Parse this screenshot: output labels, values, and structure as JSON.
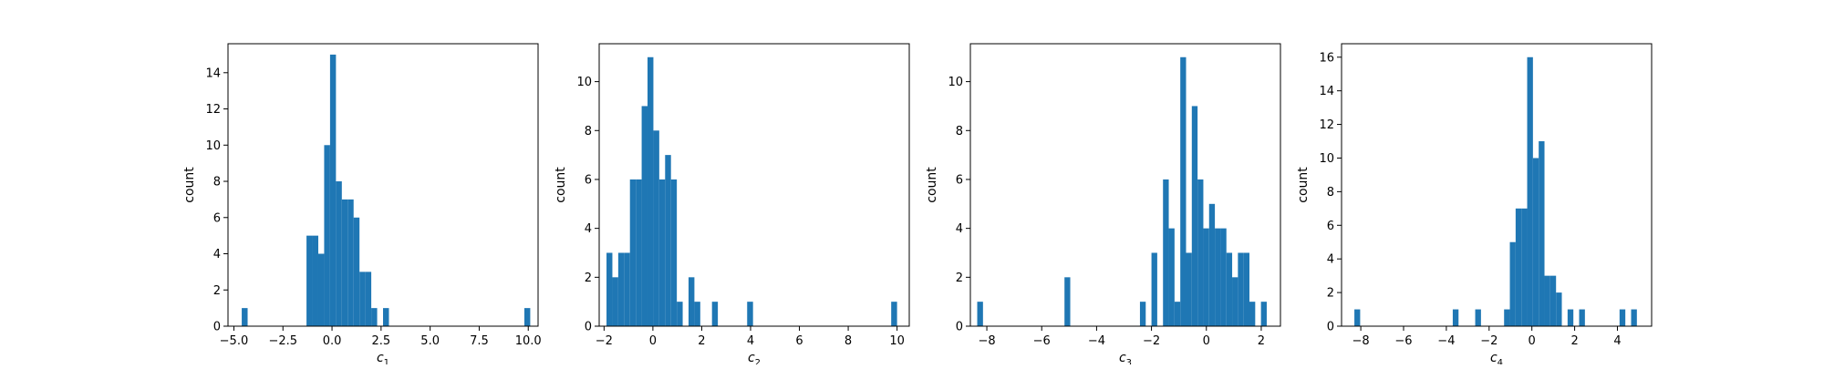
{
  "figure": {
    "bar_color": "#1f77b4",
    "axes_color": "#000000",
    "background": "#ffffff"
  },
  "chart_data": [
    {
      "type": "bar",
      "subtype": "histogram",
      "xlabel": "c",
      "xlabel_subscript": "1",
      "ylabel": "count",
      "xlim": [
        -5.3,
        10.5
      ],
      "ylim": [
        0,
        15.6
      ],
      "xticks": [
        -5.0,
        -2.5,
        0.0,
        2.5,
        5.0,
        7.5,
        10.0
      ],
      "xtick_labels": [
        "−5.0",
        "−2.5",
        "0.0",
        "2.5",
        "5.0",
        "7.5",
        "10.0"
      ],
      "yticks": [
        0,
        2,
        4,
        6,
        8,
        10,
        12,
        14
      ],
      "ytick_labels": [
        "0",
        "2",
        "4",
        "6",
        "8",
        "10",
        "12",
        "14"
      ],
      "grid": false,
      "bins": [
        {
          "x0": -4.6,
          "x1": -4.3,
          "count": 1
        },
        {
          "x0": -1.3,
          "x1": -1.0,
          "count": 5
        },
        {
          "x0": -1.0,
          "x1": -0.7,
          "count": 5
        },
        {
          "x0": -0.7,
          "x1": -0.4,
          "count": 4
        },
        {
          "x0": -0.4,
          "x1": -0.1,
          "count": 10
        },
        {
          "x0": -0.1,
          "x1": 0.2,
          "count": 15
        },
        {
          "x0": 0.2,
          "x1": 0.5,
          "count": 8
        },
        {
          "x0": 0.5,
          "x1": 0.8,
          "count": 7
        },
        {
          "x0": 0.8,
          "x1": 1.1,
          "count": 7
        },
        {
          "x0": 1.1,
          "x1": 1.4,
          "count": 6
        },
        {
          "x0": 1.4,
          "x1": 1.7,
          "count": 3
        },
        {
          "x0": 1.7,
          "x1": 2.0,
          "count": 3
        },
        {
          "x0": 2.0,
          "x1": 2.3,
          "count": 1
        },
        {
          "x0": 2.6,
          "x1": 2.9,
          "count": 1
        },
        {
          "x0": 9.8,
          "x1": 10.1,
          "count": 1
        }
      ]
    },
    {
      "type": "bar",
      "subtype": "histogram",
      "xlabel": "c",
      "xlabel_subscript": "2",
      "ylabel": "count",
      "xlim": [
        -2.2,
        10.5
      ],
      "ylim": [
        0,
        11.55
      ],
      "xticks": [
        -2,
        0,
        2,
        4,
        6,
        8,
        10
      ],
      "xtick_labels": [
        "−2",
        "0",
        "2",
        "4",
        "6",
        "8",
        "10"
      ],
      "yticks": [
        0,
        2,
        4,
        6,
        8,
        10
      ],
      "ytick_labels": [
        "0",
        "2",
        "4",
        "6",
        "8",
        "10"
      ],
      "grid": false,
      "bins": [
        {
          "x0": -1.9,
          "x1": -1.66,
          "count": 3
        },
        {
          "x0": -1.66,
          "x1": -1.42,
          "count": 2
        },
        {
          "x0": -1.42,
          "x1": -1.18,
          "count": 3
        },
        {
          "x0": -1.18,
          "x1": -0.94,
          "count": 3
        },
        {
          "x0": -0.94,
          "x1": -0.7,
          "count": 6
        },
        {
          "x0": -0.7,
          "x1": -0.46,
          "count": 6
        },
        {
          "x0": -0.46,
          "x1": -0.22,
          "count": 9
        },
        {
          "x0": -0.22,
          "x1": 0.02,
          "count": 11
        },
        {
          "x0": 0.02,
          "x1": 0.26,
          "count": 8
        },
        {
          "x0": 0.26,
          "x1": 0.5,
          "count": 6
        },
        {
          "x0": 0.5,
          "x1": 0.74,
          "count": 7
        },
        {
          "x0": 0.74,
          "x1": 0.98,
          "count": 6
        },
        {
          "x0": 0.98,
          "x1": 1.22,
          "count": 1
        },
        {
          "x0": 1.46,
          "x1": 1.7,
          "count": 2
        },
        {
          "x0": 1.7,
          "x1": 1.94,
          "count": 1
        },
        {
          "x0": 2.42,
          "x1": 2.66,
          "count": 1
        },
        {
          "x0": 3.86,
          "x1": 4.1,
          "count": 1
        },
        {
          "x0": 9.76,
          "x1": 10.0,
          "count": 1
        }
      ]
    },
    {
      "type": "bar",
      "subtype": "histogram",
      "xlabel": "c",
      "xlabel_subscript": "3",
      "ylabel": "count",
      "xlim": [
        -8.6,
        2.7
      ],
      "ylim": [
        0,
        11.55
      ],
      "xticks": [
        -8,
        -6,
        -4,
        -2,
        0,
        2
      ],
      "xtick_labels": [
        "−8",
        "−6",
        "−4",
        "−2",
        "0",
        "2"
      ],
      "yticks": [
        0,
        2,
        4,
        6,
        8,
        10
      ],
      "ytick_labels": [
        "0",
        "2",
        "4",
        "6",
        "8",
        "10"
      ],
      "grid": false,
      "bins": [
        {
          "x0": -8.35,
          "x1": -8.14,
          "count": 1
        },
        {
          "x0": -5.17,
          "x1": -4.96,
          "count": 2
        },
        {
          "x0": -2.42,
          "x1": -2.21,
          "count": 1
        },
        {
          "x0": -2.0,
          "x1": -1.79,
          "count": 3
        },
        {
          "x0": -1.58,
          "x1": -1.37,
          "count": 6
        },
        {
          "x0": -1.37,
          "x1": -1.16,
          "count": 4
        },
        {
          "x0": -1.16,
          "x1": -0.95,
          "count": 1
        },
        {
          "x0": -0.95,
          "x1": -0.74,
          "count": 11
        },
        {
          "x0": -0.74,
          "x1": -0.53,
          "count": 3
        },
        {
          "x0": -0.53,
          "x1": -0.32,
          "count": 9
        },
        {
          "x0": -0.32,
          "x1": -0.11,
          "count": 6
        },
        {
          "x0": -0.11,
          "x1": 0.1,
          "count": 4
        },
        {
          "x0": 0.1,
          "x1": 0.31,
          "count": 5
        },
        {
          "x0": 0.31,
          "x1": 0.52,
          "count": 4
        },
        {
          "x0": 0.52,
          "x1": 0.73,
          "count": 4
        },
        {
          "x0": 0.73,
          "x1": 0.94,
          "count": 3
        },
        {
          "x0": 0.94,
          "x1": 1.15,
          "count": 2
        },
        {
          "x0": 1.15,
          "x1": 1.36,
          "count": 3
        },
        {
          "x0": 1.36,
          "x1": 1.57,
          "count": 3
        },
        {
          "x0": 1.57,
          "x1": 1.78,
          "count": 1
        },
        {
          "x0": 1.99,
          "x1": 2.2,
          "count": 1
        }
      ]
    },
    {
      "type": "bar",
      "subtype": "histogram",
      "xlabel": "c",
      "xlabel_subscript": "4",
      "ylabel": "count",
      "xlim": [
        -8.9,
        5.6
      ],
      "ylim": [
        0,
        16.8
      ],
      "xticks": [
        -8,
        -6,
        -4,
        -2,
        0,
        2,
        4
      ],
      "xtick_labels": [
        "−8",
        "−6",
        "−4",
        "−2",
        "0",
        "2",
        "4"
      ],
      "yticks": [
        0,
        2,
        4,
        6,
        8,
        10,
        12,
        14,
        16
      ],
      "ytick_labels": [
        "0",
        "2",
        "4",
        "6",
        "8",
        "10",
        "12",
        "14",
        "16"
      ],
      "grid": false,
      "bins": [
        {
          "x0": -8.3,
          "x1": -8.03,
          "count": 1
        },
        {
          "x0": -3.7,
          "x1": -3.43,
          "count": 1
        },
        {
          "x0": -2.65,
          "x1": -2.38,
          "count": 1
        },
        {
          "x0": -1.3,
          "x1": -1.03,
          "count": 1
        },
        {
          "x0": -1.03,
          "x1": -0.76,
          "count": 5
        },
        {
          "x0": -0.76,
          "x1": -0.49,
          "count": 7
        },
        {
          "x0": -0.49,
          "x1": -0.22,
          "count": 7
        },
        {
          "x0": -0.22,
          "x1": 0.05,
          "count": 16
        },
        {
          "x0": 0.05,
          "x1": 0.32,
          "count": 10
        },
        {
          "x0": 0.32,
          "x1": 0.59,
          "count": 11
        },
        {
          "x0": 0.59,
          "x1": 0.86,
          "count": 3
        },
        {
          "x0": 0.86,
          "x1": 1.13,
          "count": 3
        },
        {
          "x0": 1.13,
          "x1": 1.4,
          "count": 2
        },
        {
          "x0": 1.67,
          "x1": 1.94,
          "count": 1
        },
        {
          "x0": 2.21,
          "x1": 2.48,
          "count": 1
        },
        {
          "x0": 4.1,
          "x1": 4.37,
          "count": 1
        },
        {
          "x0": 4.64,
          "x1": 4.91,
          "count": 1
        }
      ]
    }
  ]
}
